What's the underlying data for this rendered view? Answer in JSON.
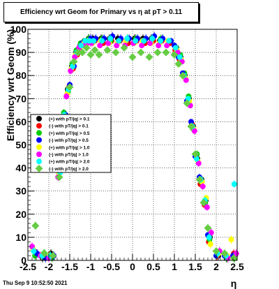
{
  "title": "Efficiency wrt Geom for Primary vs    η  at pT > 0.11",
  "timestamp": "Thu Sep  9 10:52:50 2021",
  "chart_data": {
    "type": "scatter",
    "title": "Efficiency wrt Geom for Primary vs    η  at pT > 0.11",
    "xlabel": "η",
    "ylabel": "Efficiency wrt Geom (%)",
    "xlim": [
      -2.5,
      2.5
    ],
    "ylim": [
      0,
      100
    ],
    "xticks": [
      "-2.5",
      "-2",
      "-1.5",
      "-1",
      "-0.5",
      "0",
      "0.5",
      "1",
      "1.5",
      "2",
      "2.5"
    ],
    "yticks": [
      "0",
      "10",
      "20",
      "30",
      "40",
      "50",
      "60",
      "70",
      "80",
      "90",
      "100"
    ],
    "grid": true,
    "legend_position": "left-middle",
    "series": [
      {
        "name": "(+) with pT/|q| > 0.1",
        "color": "#000000",
        "marker": "circle",
        "x": [
          -2.35,
          -2.15,
          -1.95,
          -1.75,
          -1.65,
          -1.55,
          -1.45,
          -1.35,
          -1.25,
          -1.15,
          -1.05,
          -0.95,
          -0.75,
          -0.55,
          -0.35,
          -0.15,
          0.05,
          0.25,
          0.45,
          0.65,
          0.85,
          1.05,
          1.15,
          1.25,
          1.35,
          1.45,
          1.55,
          1.65,
          1.75,
          1.85,
          2.05,
          2.25,
          2.45
        ],
        "y": [
          4,
          1,
          3,
          38,
          62,
          74,
          84,
          90,
          93,
          95,
          96,
          96,
          96,
          96,
          96,
          95,
          96,
          96,
          96,
          95,
          95,
          92,
          88,
          80,
          70,
          58,
          44,
          35,
          26,
          10,
          2,
          1,
          2
        ]
      },
      {
        "name": "(-) with pT/|q| > 0.1",
        "color": "#ff0000",
        "marker": "circle",
        "x": [
          -2.3,
          -2.1,
          -1.9,
          -1.72,
          -1.62,
          -1.52,
          -1.42,
          -1.32,
          -1.22,
          -1.12,
          -1.02,
          -0.9,
          -0.7,
          -0.5,
          -0.3,
          -0.1,
          0.1,
          0.3,
          0.5,
          0.7,
          0.9,
          1.02,
          1.12,
          1.22,
          1.32,
          1.42,
          1.52,
          1.62,
          1.72,
          1.82,
          2.02,
          2.22,
          2.42
        ],
        "y": [
          3,
          2,
          2,
          40,
          60,
          75,
          83,
          89,
          93,
          94,
          95,
          95,
          94,
          95,
          95,
          94,
          95,
          94,
          95,
          95,
          94,
          91,
          87,
          80,
          68,
          59,
          45,
          33,
          24,
          8,
          2,
          2,
          3
        ]
      },
      {
        "name": "(+) with pT/|q| > 0.5",
        "color": "#00cc00",
        "marker": "circle",
        "x": [
          -2.33,
          -2.12,
          -1.92,
          -1.74,
          -1.64,
          -1.54,
          -1.44,
          -1.34,
          -1.24,
          -1.14,
          -1.04,
          -0.92,
          -0.72,
          -0.52,
          -0.32,
          -0.12,
          0.08,
          0.28,
          0.48,
          0.68,
          0.88,
          1.04,
          1.14,
          1.24,
          1.34,
          1.44,
          1.54,
          1.64,
          1.74,
          1.84,
          2.04,
          2.24,
          2.44
        ],
        "y": [
          2,
          3,
          1,
          39,
          64,
          73,
          85,
          91,
          94,
          95,
          96,
          95,
          96,
          95,
          95,
          96,
          96,
          95,
          96,
          96,
          95,
          92,
          89,
          81,
          71,
          57,
          46,
          34,
          25,
          9,
          3,
          1,
          1
        ]
      },
      {
        "name": "(-) with pT/|q| > 0.5",
        "color": "#0000ff",
        "marker": "circle",
        "x": [
          -2.28,
          -2.08,
          -1.88,
          -1.7,
          -1.6,
          -1.5,
          -1.4,
          -1.3,
          -1.2,
          -1.1,
          -1.0,
          -0.88,
          -0.68,
          -0.48,
          -0.28,
          -0.08,
          0.12,
          0.32,
          0.52,
          0.72,
          0.92,
          1.0,
          1.1,
          1.2,
          1.3,
          1.4,
          1.5,
          1.6,
          1.7,
          1.8,
          2.0,
          2.2,
          2.4
        ],
        "y": [
          3,
          1,
          2,
          42,
          63,
          76,
          84,
          90,
          94,
          95,
          96,
          96,
          96,
          97,
          96,
          96,
          96,
          96,
          97,
          96,
          95,
          93,
          88,
          81,
          69,
          60,
          45,
          36,
          25,
          11,
          2,
          2,
          2
        ]
      },
      {
        "name": "(+) with pT/|q| > 1.0",
        "color": "#ffff00",
        "marker": "circle",
        "x": [
          -2.38,
          -2.18,
          -1.98,
          -1.76,
          -1.66,
          -1.56,
          -1.46,
          -1.36,
          -1.26,
          -1.16,
          -1.06,
          -0.96,
          -0.76,
          -0.56,
          -0.36,
          -0.16,
          0.04,
          0.24,
          0.44,
          0.64,
          0.84,
          1.06,
          1.16,
          1.26,
          1.36,
          1.46,
          1.56,
          1.66,
          1.76,
          1.86,
          2.06,
          2.26,
          2.36
        ],
        "y": [
          5,
          2,
          2,
          37,
          61,
          72,
          83,
          89,
          92,
          94,
          95,
          94,
          95,
          94,
          94,
          95,
          94,
          95,
          94,
          94,
          95,
          91,
          87,
          79,
          69,
          57,
          43,
          34,
          27,
          7,
          3,
          2,
          9
        ]
      },
      {
        "name": "(-) with pT/|q| > 1.0",
        "color": "#ff00ff",
        "marker": "circle",
        "x": [
          -2.4,
          -2.2,
          -2.0,
          -1.78,
          -1.68,
          -1.58,
          -1.48,
          -1.38,
          -1.28,
          -1.18,
          -1.08,
          -0.98,
          -0.78,
          -0.58,
          -0.38,
          -0.18,
          0.02,
          0.22,
          0.42,
          0.62,
          0.82,
          1.08,
          1.18,
          1.28,
          1.38,
          1.48,
          1.58,
          1.68,
          1.78,
          1.88,
          2.08,
          2.28,
          2.48
        ],
        "y": [
          6,
          2,
          1,
          36,
          59,
          71,
          82,
          88,
          92,
          93,
          94,
          94,
          93,
          94,
          93,
          93,
          94,
          93,
          94,
          93,
          93,
          90,
          86,
          78,
          67,
          56,
          42,
          32,
          23,
          12,
          4,
          1,
          3
        ]
      },
      {
        "name": "(+) with pT/|q| > 2.0",
        "color": "#00ffff",
        "marker": "circle",
        "x": [
          -2.36,
          -2.16,
          -1.96,
          -1.73,
          -1.63,
          -1.53,
          -1.43,
          -1.33,
          -1.23,
          -1.13,
          -1.03,
          -0.93,
          -0.73,
          -0.53,
          -0.33,
          -0.13,
          0.07,
          0.27,
          0.47,
          0.67,
          0.87,
          1.03,
          1.13,
          1.23,
          1.33,
          1.43,
          1.53,
          1.63,
          1.73,
          1.83,
          2.03,
          2.23,
          2.43
        ],
        "y": [
          4,
          2,
          2,
          38,
          63,
          74,
          84,
          90,
          93,
          95,
          95,
          95,
          95,
          96,
          95,
          96,
          95,
          95,
          96,
          95,
          95,
          92,
          88,
          80,
          70,
          58,
          44,
          35,
          26,
          10,
          3,
          2,
          33
        ]
      },
      {
        "name": "(-) with pT/|q| > 2.0",
        "color": "#66cc44",
        "marker": "diamond",
        "x": [
          -2.32,
          -2.1,
          -1.9,
          -1.75,
          -1.6,
          -1.5,
          -1.4,
          -1.3,
          -1.2,
          -1.1,
          -1.0,
          -0.9,
          -0.8,
          -0.6,
          -0.4,
          -0.2,
          0.0,
          0.2,
          0.4,
          0.6,
          0.8,
          1.0,
          1.1,
          1.2,
          1.3,
          1.4,
          1.5,
          1.6,
          1.7,
          1.8,
          2.0,
          2.2,
          2.42
        ],
        "y": [
          15,
          3,
          2,
          36,
          62,
          75,
          86,
          90,
          90,
          92,
          89,
          91,
          89,
          91,
          90,
          92,
          88,
          90,
          88,
          90,
          90,
          89,
          85,
          80,
          68,
          58,
          46,
          35,
          25,
          14,
          4,
          3,
          1
        ]
      }
    ]
  }
}
